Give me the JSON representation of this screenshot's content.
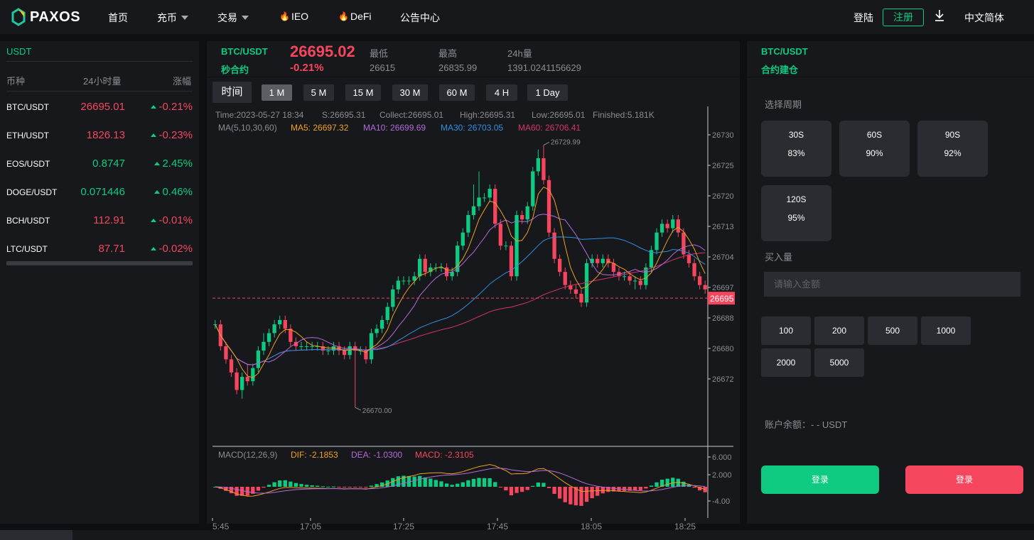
{
  "nav": {
    "logo": "PAXOS",
    "items": [
      {
        "label": "首页"
      },
      {
        "label": "充币"
      },
      {
        "label": "交易"
      },
      {
        "label": "IEO"
      },
      {
        "label": "DeFi"
      },
      {
        "label": "公告中心"
      }
    ],
    "login": "登陆",
    "register": "注册",
    "language": "中文简体"
  },
  "market": {
    "tab": "USDT",
    "headers": {
      "coin": "币种",
      "volume": "24小时量",
      "change": "涨幅"
    },
    "rows": [
      {
        "symbol": "BTC/USDT",
        "volume": "26695.01",
        "change": "-0.21%",
        "vol_trend": "down"
      },
      {
        "symbol": "ETH/USDT",
        "volume": "1826.13",
        "change": "-0.23%",
        "vol_trend": "down"
      },
      {
        "symbol": "EOS/USDT",
        "volume": "0.8747",
        "change": "2.45%",
        "vol_trend": "up"
      },
      {
        "symbol": "DOGE/USDT",
        "volume": "0.071446",
        "change": "0.46%",
        "vol_trend": "up"
      },
      {
        "symbol": "BCH/USDT",
        "volume": "112.91",
        "change": "-0.01%",
        "vol_trend": "down"
      },
      {
        "symbol": "LTC/USDT",
        "volume": "87.71",
        "change": "-0.02%",
        "vol_trend": "down"
      }
    ]
  },
  "ticker": {
    "pair": "BTC/USDT",
    "contract": "秒合约",
    "price": "26695.02",
    "change": "-0.21%",
    "low_label": "最低",
    "low": "26615",
    "high_label": "最高",
    "high": "26835.99",
    "vol_label": "24h量",
    "vol": "1391.0241156629"
  },
  "intervals": [
    "时间",
    "1 M",
    "5 M",
    "15 M",
    "30 M",
    "60 M",
    "4 H",
    "1 Day"
  ],
  "active_interval": "1 M",
  "chart_data": {
    "type": "candlestick",
    "info": {
      "time": "Time:2023-05-27 18:34",
      "s": "S:26695.31",
      "collect": "Collect:26695.01",
      "high": "High:26695.31",
      "low": "Low:26695.01",
      "finished": "Finished:5.181K"
    },
    "ma": {
      "label": "MA(5,10,30,60)",
      "ma5": "MA5: 26697.32",
      "ma10": "MA10: 26699.69",
      "ma30": "MA30: 26703.05",
      "ma60": "MA60: 26706.41"
    },
    "colors": {
      "up": "#0ecb81",
      "down": "#f6465d",
      "ma5": "#f0a020",
      "ma10": "#b46ad8",
      "ma30": "#2f8fe0",
      "ma60": "#d6336c"
    },
    "price_axis": [
      "26730",
      "26725",
      "26720",
      "26713",
      "26704",
      "26697",
      "26688",
      "26680",
      "26672"
    ],
    "current_price_tag": "26695",
    "max_label": "26729.99",
    "min_label": "26670.00",
    "time_axis": [
      "5:45",
      "17:05",
      "17:25",
      "17:45",
      "18:05",
      "18:25"
    ],
    "candles": [
      [
        26689,
        26689,
        26690,
        26688
      ],
      [
        26689,
        26684,
        26690,
        26683
      ],
      [
        26684,
        26681,
        26685,
        26680
      ],
      [
        26681,
        26678,
        26682,
        26677
      ],
      [
        26678,
        26674,
        26679,
        26673
      ],
      [
        26674,
        26677,
        26678,
        26672
      ],
      [
        26677,
        26676,
        26680,
        26675
      ],
      [
        26676,
        26679,
        26680,
        26675
      ],
      [
        26679,
        26683,
        26684,
        26678
      ],
      [
        26683,
        26685,
        26687,
        26682
      ],
      [
        26685,
        26687,
        26688,
        26684
      ],
      [
        26687,
        26689,
        26690,
        26686
      ],
      [
        26689,
        26690,
        26691,
        26688
      ],
      [
        26690,
        26688,
        26691,
        26687
      ],
      [
        26688,
        26685,
        26689,
        26684
      ],
      [
        26685,
        26684,
        26686,
        26683
      ],
      [
        26684,
        26684,
        26685,
        26683
      ],
      [
        26684,
        26684,
        26685,
        26683
      ],
      [
        26684,
        26684,
        26685,
        26683
      ],
      [
        26684,
        26684,
        26685,
        26683
      ],
      [
        26684,
        26683,
        26685,
        26682
      ],
      [
        26683,
        26683,
        26684,
        26682
      ],
      [
        26683,
        26684,
        26685,
        26682
      ],
      [
        26684,
        26683,
        26685,
        26682
      ],
      [
        26683,
        26682,
        26684,
        26681
      ],
      [
        26682,
        26684,
        26685,
        26681
      ],
      [
        26684,
        26683,
        26685,
        26670
      ],
      [
        26683,
        26683,
        26684,
        26682
      ],
      [
        26683,
        26681,
        26684,
        26680
      ],
      [
        26681,
        26687,
        26688,
        26680
      ],
      [
        26687,
        26688,
        26689,
        26686
      ],
      [
        26688,
        26690,
        26691,
        26687
      ],
      [
        26690,
        26693,
        26694,
        26689
      ],
      [
        26693,
        26697,
        26698,
        26692
      ],
      [
        26697,
        26699,
        26700,
        26696
      ],
      [
        26699,
        26699,
        26700,
        26698
      ],
      [
        26699,
        26699,
        26700,
        26698
      ],
      [
        26699,
        26700,
        26701,
        26698
      ],
      [
        26700,
        26704,
        26705,
        26699
      ],
      [
        26704,
        26701,
        26705,
        26700
      ],
      [
        26701,
        26702,
        26703,
        26700
      ],
      [
        26702,
        26702,
        26703,
        26701
      ],
      [
        26702,
        26702,
        26703,
        26701
      ],
      [
        26702,
        26700,
        26703,
        26699
      ],
      [
        26700,
        26701,
        26702,
        26699
      ],
      [
        26701,
        26707,
        26708,
        26700
      ],
      [
        26707,
        26710,
        26711,
        26706
      ],
      [
        26710,
        26714,
        26715,
        26709
      ],
      [
        26714,
        26716,
        26721,
        26713
      ],
      [
        26716,
        26718,
        26724,
        26715
      ],
      [
        26718,
        26718,
        26719,
        26717
      ],
      [
        26718,
        26720,
        26721,
        26717
      ],
      [
        26720,
        26712,
        26721,
        26711
      ],
      [
        26712,
        26707,
        26713,
        26706
      ],
      [
        26707,
        26707,
        26708,
        26706
      ],
      [
        26707,
        26700,
        26708,
        26699
      ],
      [
        26700,
        26714,
        26715,
        26699
      ],
      [
        26714,
        26713,
        26715,
        26712
      ],
      [
        26713,
        26716,
        26717,
        26712
      ],
      [
        26716,
        26724,
        26725,
        26715
      ],
      [
        26724,
        26727,
        26729,
        26723
      ],
      [
        26727,
        26722,
        26730,
        26721
      ],
      [
        26722,
        26710,
        26723,
        26709
      ],
      [
        26710,
        26704,
        26711,
        26703
      ],
      [
        26704,
        26701,
        26705,
        26700
      ],
      [
        26701,
        26698,
        26702,
        26697
      ],
      [
        26698,
        26697,
        26699,
        26696
      ],
      [
        26697,
        26696,
        26698,
        26695
      ],
      [
        26696,
        26694,
        26697,
        26693
      ],
      [
        26694,
        26703,
        26704,
        26693
      ],
      [
        26703,
        26704,
        26705,
        26702
      ],
      [
        26704,
        26703,
        26705,
        26702
      ],
      [
        26703,
        26704,
        26705,
        26702
      ],
      [
        26704,
        26703,
        26705,
        26702
      ],
      [
        26703,
        26701,
        26704,
        26700
      ],
      [
        26701,
        26700,
        26702,
        26699
      ],
      [
        26700,
        26700,
        26701,
        26699
      ],
      [
        26700,
        26699,
        26701,
        26698
      ],
      [
        26699,
        26699,
        26700,
        26697
      ],
      [
        26699,
        26698,
        26700,
        26697
      ],
      [
        26698,
        26702,
        26703,
        26697
      ],
      [
        26702,
        26706,
        26707,
        26701
      ],
      [
        26706,
        26710,
        26711,
        26705
      ],
      [
        26710,
        26712,
        26713,
        26709
      ],
      [
        26712,
        26711,
        26713,
        26710
      ],
      [
        26711,
        26713,
        26714,
        26710
      ],
      [
        26713,
        26710,
        26714,
        26709
      ],
      [
        26710,
        26705,
        26711,
        26704
      ],
      [
        26705,
        26703,
        26706,
        26702
      ],
      [
        26703,
        26700,
        26704,
        26699
      ],
      [
        26700,
        26698,
        26701,
        26697
      ],
      [
        26698,
        26697,
        26699,
        26696
      ]
    ],
    "macd": {
      "label": "MACD(12,26,9)",
      "dif": "DIF: -2.1853",
      "dea": "DEA: -1.0300",
      "macd": "MACD: -2.3105",
      "axis": [
        "6.000",
        "2.000",
        "-4.00"
      ]
    }
  },
  "order": {
    "pair": "BTC/USDT",
    "subtitle": "合约建仓",
    "period_label": "选择周期",
    "periods": [
      {
        "time": "30S",
        "rate": "83%"
      },
      {
        "time": "60S",
        "rate": "90%"
      },
      {
        "time": "90S",
        "rate": "92%"
      },
      {
        "time": "120S",
        "rate": "95%"
      }
    ],
    "amount_label": "买入量",
    "amount_placeholder": "请输入金额",
    "quick_amounts": [
      "100",
      "200",
      "500",
      "1000",
      "2000",
      "5000"
    ],
    "balance": "账户余额：- - USDT",
    "buy_label": "登录",
    "sell_label": "登录"
  }
}
